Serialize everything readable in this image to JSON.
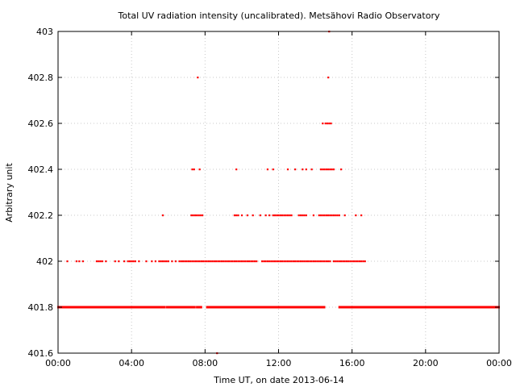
{
  "chart_data": {
    "type": "scatter",
    "title": "Total UV radiation intensity (uncalibrated). Metsähovi Radio Observatory",
    "xlabel": "Time UT, on date 2013-06-14",
    "ylabel": "Arbitrary unit",
    "x_unit": "hours UT",
    "xlim": [
      0,
      24
    ],
    "ylim": [
      401.6,
      403
    ],
    "x_ticks": [
      0,
      4,
      8,
      12,
      16,
      20,
      24
    ],
    "x_tick_labels": [
      "00:00",
      "04:00",
      "08:00",
      "12:00",
      "16:00",
      "20:00",
      "00:00"
    ],
    "y_ticks": [
      401.6,
      401.8,
      402,
      402.2,
      402.4,
      402.6,
      402.8,
      403
    ],
    "y_tick_labels": [
      "401.6",
      "401.8",
      "402",
      "402.2",
      "402.4",
      "402.6",
      "402.8",
      "403"
    ],
    "grid": true,
    "marker_color": "#ff0000",
    "series": [
      {
        "levels": [
          {
            "y": 403,
            "x": [
              14.75
            ]
          },
          {
            "y": 402.8,
            "x": [
              7.6,
              14.7
            ]
          },
          {
            "y": 402.6,
            "x": [
              14.4,
              14.55,
              14.65,
              14.75,
              14.85
            ]
          },
          {
            "y": 402.4,
            "x": [
              7.3,
              7.4,
              7.7,
              9.7,
              11.4,
              11.7,
              12.5,
              12.9,
              13.3,
              13.5,
              13.8,
              14.3,
              14.4,
              14.5,
              14.6,
              14.7,
              14.8,
              14.9,
              15.0,
              15.4
            ]
          },
          {
            "y": 402.2,
            "x": [
              5.7,
              7.25,
              7.35,
              7.45,
              7.55,
              7.65,
              7.75,
              7.85,
              9.6,
              9.7,
              9.8,
              10.0,
              10.3,
              10.6,
              11.0,
              11.3,
              11.5,
              11.7,
              11.8,
              11.9,
              12.0,
              12.1,
              12.2,
              12.3,
              12.4,
              12.5,
              12.6,
              12.7,
              13.1,
              13.2,
              13.3,
              13.4,
              13.5,
              13.9,
              14.2,
              14.3,
              14.4,
              14.5,
              14.6,
              14.7,
              14.8,
              14.9,
              15.0,
              15.1,
              15.2,
              15.3,
              15.6,
              16.2,
              16.5
            ]
          },
          {
            "y": 402,
            "x": [
              0.5,
              1.0,
              1.15,
              1.35,
              2.1,
              2.2,
              2.3,
              2.4,
              2.6,
              3.1,
              3.3,
              3.6,
              3.8,
              3.9,
              4.0,
              4.1,
              4.2,
              4.4,
              4.8,
              5.1,
              5.3,
              5.5,
              5.6,
              5.7,
              5.8,
              5.9,
              6.0,
              6.2,
              6.4,
              6.6,
              6.7,
              6.8,
              6.9,
              7.0,
              7.1,
              7.2,
              7.3,
              7.4,
              7.5,
              7.6,
              7.7,
              7.8,
              7.9,
              8.0,
              8.1,
              8.2,
              8.3,
              8.4,
              8.5,
              8.6,
              8.7,
              8.8,
              8.9,
              9.0,
              9.1,
              9.2,
              9.3,
              9.4,
              9.5,
              9.6,
              9.7,
              9.8,
              9.9,
              10.0,
              10.1,
              10.2,
              10.3,
              10.4,
              10.5,
              10.6,
              10.7,
              10.8,
              11.1,
              11.2,
              11.3,
              11.4,
              11.5,
              11.6,
              11.7,
              11.8,
              11.9,
              12.0,
              12.1,
              12.2,
              12.3,
              12.4,
              12.5,
              12.6,
              12.7,
              12.8,
              12.9,
              13.0,
              13.1,
              13.2,
              13.3,
              13.4,
              13.5,
              13.6,
              13.7,
              13.8,
              13.9,
              14.0,
              14.1,
              14.2,
              14.3,
              14.4,
              14.5,
              14.6,
              14.7,
              14.8,
              15.0,
              15.1,
              15.2,
              15.3,
              15.4,
              15.5,
              15.6,
              15.7,
              15.8,
              15.9,
              16.0,
              16.1,
              16.2,
              16.3,
              16.4,
              16.5,
              16.6,
              16.7
            ]
          }
        ],
        "baseline": {
          "y": 401.8,
          "segments": [
            [
              0,
              5.8
            ],
            [
              5.9,
              7.45
            ],
            [
              7.55,
              7.8
            ],
            [
              8.1,
              9.1
            ],
            [
              9.15,
              14.5
            ],
            [
              15.3,
              24
            ]
          ]
        },
        "low": {
          "y": 401.6,
          "x": [
            8.65
          ]
        }
      }
    ]
  }
}
